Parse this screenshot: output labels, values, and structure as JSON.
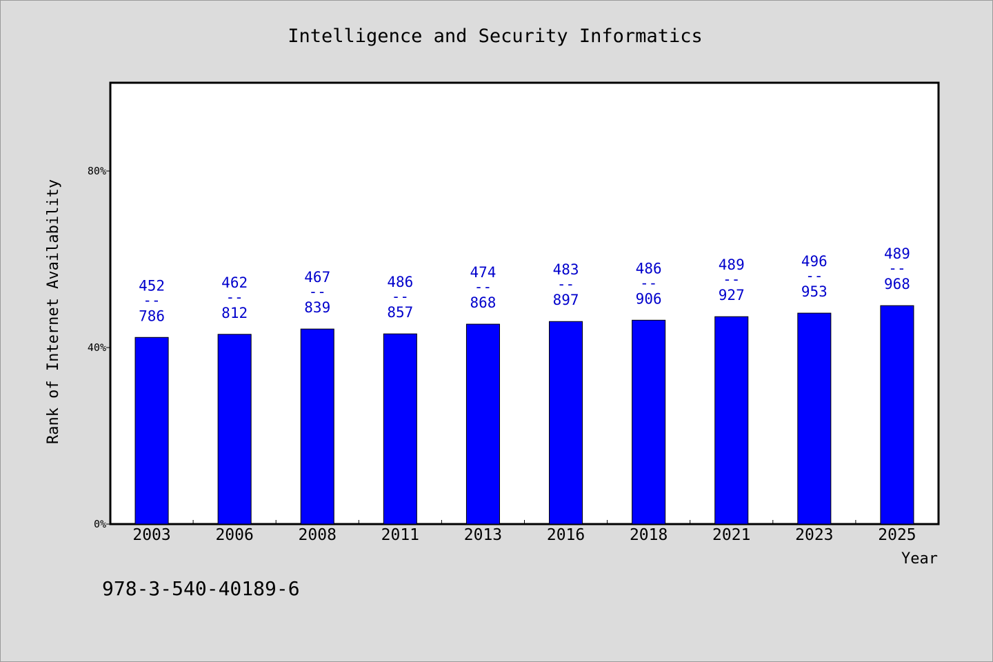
{
  "chart_data": {
    "type": "bar",
    "title": "Intelligence and Security Informatics",
    "xlabel": "Year",
    "ylabel": "Rank of Internet Availability",
    "categories": [
      "2003",
      "2006",
      "2008",
      "2011",
      "2013",
      "2016",
      "2018",
      "2021",
      "2023",
      "2025"
    ],
    "values": [
      42.3,
      43.0,
      44.2,
      43.1,
      45.3,
      45.9,
      46.2,
      47.0,
      47.8,
      49.5
    ],
    "value_unit": "%",
    "data_labels": [
      {
        "top": "452",
        "sep": "--",
        "bottom": "786"
      },
      {
        "top": "462",
        "sep": "--",
        "bottom": "812"
      },
      {
        "top": "467",
        "sep": "--",
        "bottom": "839"
      },
      {
        "top": "486",
        "sep": "--",
        "bottom": "857"
      },
      {
        "top": "474",
        "sep": "--",
        "bottom": "868"
      },
      {
        "top": "483",
        "sep": "--",
        "bottom": "897"
      },
      {
        "top": "486",
        "sep": "--",
        "bottom": "906"
      },
      {
        "top": "489",
        "sep": "--",
        "bottom": "927"
      },
      {
        "top": "496",
        "sep": "--",
        "bottom": "953"
      },
      {
        "top": "489",
        "sep": "--",
        "bottom": "968"
      }
    ],
    "yticks": [
      0,
      40,
      80
    ],
    "ytick_labels": [
      "0%",
      "40%",
      "80%"
    ],
    "ylim": [
      0,
      100
    ],
    "grid": false,
    "bar_color": "#0000ff",
    "label_color": "#0000cc"
  },
  "footer": {
    "isbn": "978-3-540-40189-6"
  }
}
